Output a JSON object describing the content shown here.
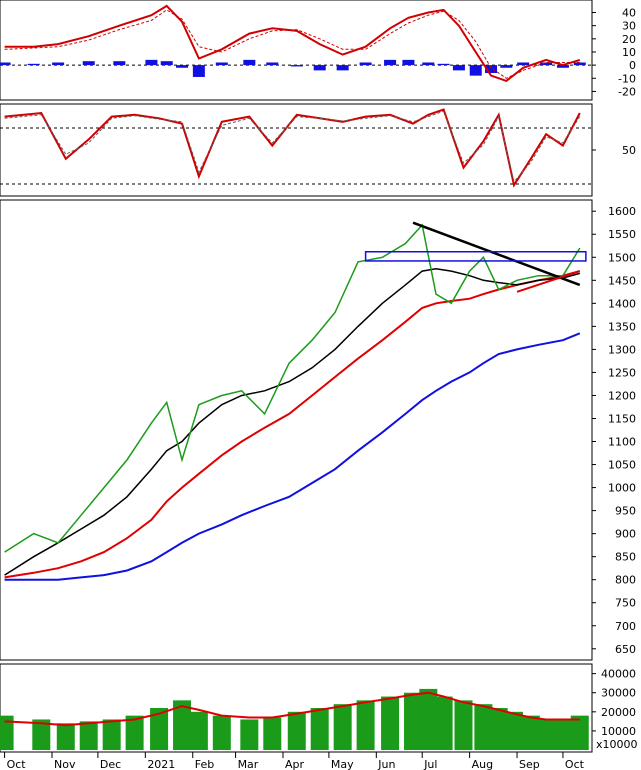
{
  "chart_data": [
    {
      "type": "line",
      "panel": "macd",
      "y_ticks": [
        "40",
        "30",
        "20",
        "10",
        "0",
        "-10",
        "-20"
      ],
      "ylim": [
        -25,
        48
      ],
      "x": [
        "2020-10-01",
        "2020-10-20",
        "2020-11-05",
        "2020-11-25",
        "2020-12-15",
        "2021-01-05",
        "2021-01-15",
        "2021-01-25",
        "2021-02-05",
        "2021-02-20",
        "2021-03-10",
        "2021-03-25",
        "2021-04-10",
        "2021-04-25",
        "2021-05-10",
        "2021-05-25",
        "2021-06-10",
        "2021-06-22",
        "2021-07-05",
        "2021-07-15",
        "2021-07-25",
        "2021-08-05",
        "2021-08-15",
        "2021-08-25",
        "2021-09-05",
        "2021-09-20",
        "2021-10-01",
        "2021-10-12"
      ],
      "series": [
        {
          "values": [
            14,
            14,
            16,
            22,
            30,
            38,
            45,
            33,
            5,
            12,
            24,
            28,
            26,
            16,
            8,
            14,
            28,
            36,
            40,
            42,
            30,
            10,
            -8,
            -12,
            -2,
            4,
            0,
            4
          ]
        },
        {
          "values": [
            12,
            13,
            14,
            19,
            27,
            34,
            42,
            35,
            14,
            10,
            20,
            26,
            27,
            20,
            12,
            12,
            24,
            32,
            38,
            41,
            34,
            18,
            -2,
            -10,
            -4,
            2,
            2,
            2
          ]
        },
        {
          "values": [
            2,
            1,
            2,
            3,
            3,
            4,
            3,
            -2,
            -9,
            2,
            4,
            2,
            -1,
            -4,
            -4,
            2,
            4,
            4,
            2,
            1,
            -4,
            -8,
            -6,
            -2,
            2,
            2,
            -2,
            2
          ]
        }
      ]
    },
    {
      "type": "line",
      "panel": "oscillator",
      "y_ticks": [
        "50"
      ],
      "ylim": [
        0,
        100
      ],
      "x": [
        "2020-10-01",
        "2020-10-25",
        "2020-11-10",
        "2020-11-25",
        "2020-12-10",
        "2020-12-25",
        "2021-01-10",
        "2021-01-25",
        "2021-02-05",
        "2021-02-20",
        "2021-03-10",
        "2021-03-25",
        "2021-04-10",
        "2021-04-25",
        "2021-05-10",
        "2021-05-25",
        "2021-06-10",
        "2021-06-25",
        "2021-07-05",
        "2021-07-15",
        "2021-07-28",
        "2021-08-10",
        "2021-08-20",
        "2021-08-30",
        "2021-09-10",
        "2021-09-20",
        "2021-10-01",
        "2021-10-12"
      ],
      "series": [
        {
          "values": [
            88,
            92,
            40,
            62,
            88,
            90,
            86,
            80,
            20,
            82,
            88,
            55,
            90,
            86,
            82,
            88,
            90,
            80,
            90,
            96,
            30,
            60,
            90,
            10,
            40,
            68,
            55,
            92
          ]
        },
        {
          "values": [
            86,
            90,
            45,
            58,
            86,
            89,
            85,
            82,
            25,
            78,
            86,
            58,
            88,
            86,
            83,
            86,
            89,
            82,
            88,
            94,
            35,
            56,
            88,
            14,
            36,
            65,
            58,
            88
          ]
        }
      ]
    },
    {
      "type": "line",
      "panel": "price",
      "y_ticks": [
        "1600",
        "1550",
        "1500",
        "1450",
        "1400",
        "1350",
        "1300",
        "1250",
        "1200",
        "1150",
        "1100",
        "1050",
        "1000",
        "950",
        "900",
        "850",
        "800",
        "750",
        "700",
        "650"
      ],
      "ylim": [
        630,
        1620
      ],
      "x": [
        "2020-10-01",
        "2020-10-20",
        "2020-11-05",
        "2020-11-20",
        "2020-12-05",
        "2020-12-20",
        "2021-01-05",
        "2021-01-15",
        "2021-01-25",
        "2021-02-05",
        "2021-02-20",
        "2021-03-05",
        "2021-03-20",
        "2021-04-05",
        "2021-04-20",
        "2021-05-05",
        "2021-05-20",
        "2021-06-05",
        "2021-06-20",
        "2021-07-01",
        "2021-07-10",
        "2021-07-20",
        "2021-08-01",
        "2021-08-10",
        "2021-08-20",
        "2021-09-01",
        "2021-09-15",
        "2021-10-01",
        "2021-10-12"
      ],
      "series": [
        {
          "values": [
            860,
            900,
            880,
            940,
            1000,
            1060,
            1140,
            1185,
            1060,
            1180,
            1200,
            1210,
            1160,
            1270,
            1320,
            1380,
            1490,
            1500,
            1530,
            1570,
            1420,
            1400,
            1470,
            1500,
            1430,
            1450,
            1460,
            1460,
            1520
          ]
        },
        {
          "values": [
            810,
            850,
            880,
            910,
            940,
            980,
            1040,
            1080,
            1100,
            1140,
            1180,
            1200,
            1210,
            1230,
            1260,
            1300,
            1350,
            1400,
            1440,
            1470,
            1475,
            1470,
            1460,
            1450,
            1445,
            1440,
            1450,
            1455,
            1465
          ]
        },
        {
          "values": [
            805,
            815,
            825,
            840,
            860,
            890,
            930,
            970,
            1000,
            1030,
            1070,
            1100,
            1130,
            1160,
            1200,
            1240,
            1280,
            1320,
            1360,
            1390,
            1400,
            1405,
            1410,
            1420,
            1430,
            1440,
            1450,
            1460,
            1470
          ]
        },
        {
          "values": [
            800,
            800,
            800,
            805,
            810,
            820,
            840,
            860,
            880,
            900,
            920,
            940,
            960,
            980,
            1010,
            1040,
            1080,
            1120,
            1160,
            1190,
            1210,
            1230,
            1250,
            1270,
            1290,
            1300,
            1310,
            1320,
            1335
          ]
        }
      ],
      "lines": [
        {
          "x": [
            "2021-06-25",
            "2021-10-12"
          ],
          "values": [
            1575,
            1440
          ]
        },
        {
          "x": [
            "2021-09-01",
            "2021-10-12"
          ],
          "values": [
            1425,
            1470
          ]
        }
      ],
      "box": {
        "x": [
          "2021-05-25",
          "2021-10-16"
        ],
        "y": [
          1492,
          1512
        ]
      }
    },
    {
      "type": "bar",
      "panel": "volume",
      "y_ticks": [
        "40000",
        "30000",
        "20000",
        "10000"
      ],
      "y_multiplier": "x10000",
      "ylim": [
        0,
        44000
      ],
      "x_ticks": [
        "Oct",
        "Nov",
        "Dec",
        "2021",
        "Feb",
        "Mar",
        "Apr",
        "May",
        "Jun",
        "Jul",
        "Aug",
        "Sep",
        "Oct"
      ],
      "x": [
        "2020-10-01",
        "2020-10-25",
        "2020-11-10",
        "2020-11-25",
        "2020-12-10",
        "2020-12-25",
        "2021-01-10",
        "2021-01-25",
        "2021-02-05",
        "2021-02-20",
        "2021-03-10",
        "2021-03-25",
        "2021-04-10",
        "2021-04-25",
        "2021-05-10",
        "2021-05-25",
        "2021-06-10",
        "2021-06-25",
        "2021-07-05",
        "2021-07-15",
        "2021-07-28",
        "2021-08-10",
        "2021-08-20",
        "2021-08-30",
        "2021-09-10",
        "2021-09-20",
        "2021-10-01",
        "2021-10-12"
      ],
      "series": [
        {
          "values": [
            18000,
            16000,
            14000,
            15000,
            16000,
            18000,
            22000,
            26000,
            20000,
            18000,
            16000,
            17000,
            20000,
            22000,
            24000,
            26000,
            28000,
            30000,
            32000,
            28000,
            26000,
            24000,
            22000,
            20000,
            18000,
            16000,
            16000,
            18000
          ]
        },
        {
          "values": [
            15000,
            14000,
            13000,
            14000,
            15000,
            16000,
            19000,
            23000,
            21000,
            18000,
            17000,
            17000,
            19000,
            21000,
            23000,
            25000,
            27000,
            29000,
            30000,
            28000,
            25000,
            23000,
            21000,
            19000,
            17000,
            16000,
            16000,
            16000
          ]
        }
      ]
    }
  ]
}
